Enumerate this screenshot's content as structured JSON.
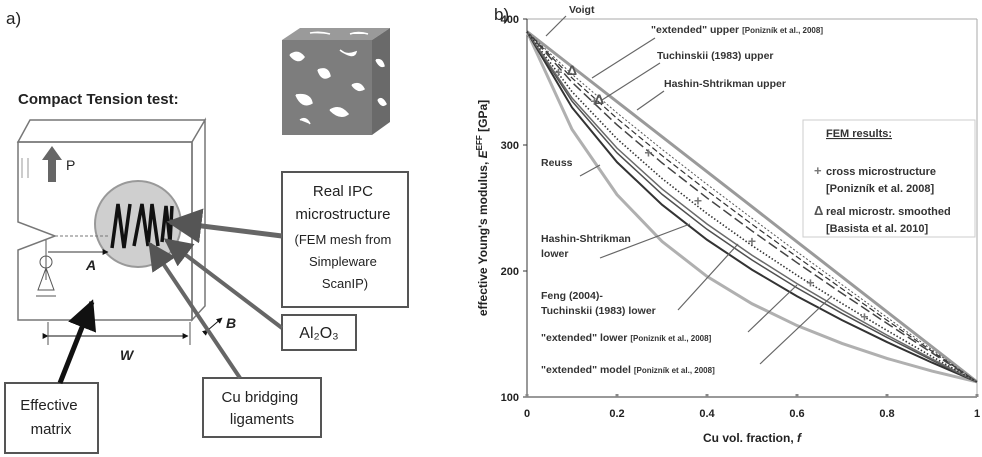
{
  "panel_a": {
    "label": "a)",
    "title": "Compact Tension test:",
    "load": "P",
    "dim_a": "A",
    "dim_b": "B",
    "dim_w": "W",
    "micro_box": [
      "Real IPC",
      "microstructure",
      "(FEM mesh from",
      "Simpleware",
      "ScanIP)"
    ],
    "al2o3": "Al₂O₃",
    "cu_box": [
      "Cu bridging",
      "ligaments"
    ],
    "matrix_box": [
      "Effective",
      "matrix"
    ]
  },
  "chart_data": {
    "type": "line",
    "panel_label": "b)",
    "xlabel": "Cu vol. fraction, ",
    "xlabel_var": "f",
    "ylabel": "effective Young's modulus, ",
    "ylabel_var": "E",
    "ylabel_sup": "EFF",
    "ylabel_unit": " [GPa]",
    "xlim": [
      0,
      1
    ],
    "ylim": [
      100,
      400
    ],
    "xticks": [
      0,
      0.2,
      0.4,
      0.6,
      0.8,
      1
    ],
    "yticks": [
      100,
      200,
      300,
      400
    ],
    "x": [
      0,
      0.1,
      0.2,
      0.3,
      0.4,
      0.5,
      0.6,
      0.7,
      0.8,
      0.9,
      1
    ],
    "series": [
      {
        "label": [
          "Voigt"
        ],
        "color": "#9a9a9a",
        "width": 3,
        "dash": "none",
        "values": [
          390,
          362.2,
          334.4,
          306.6,
          278.8,
          251,
          223.2,
          195.4,
          167.6,
          139.8,
          112
        ]
      },
      {
        "label": [
          "\"extended\" upper "
        ],
        "ref": "[Ponizník et al., 2008]",
        "color": "#555555",
        "width": 1,
        "dash": "2,2",
        "values": [
          390,
          356.2,
          325.5,
          296.6,
          268.8,
          241.8,
          215.2,
          189.1,
          163.2,
          137.5,
          112
        ]
      },
      {
        "label": [
          "Tuchinskii (1983) upper"
        ],
        "color": "#333333",
        "width": 1.2,
        "dash": "6,3",
        "values": [
          390,
          353.2,
          321.1,
          291.6,
          263.8,
          237.1,
          211.2,
          185.9,
          160.9,
          136.3,
          112
        ]
      },
      {
        "label": [
          "Hashin-Shtrikman upper"
        ],
        "color": "#444444",
        "width": 1.5,
        "dash": "10,4",
        "values": [
          390,
          349.8,
          316,
          285.8,
          258,
          231.8,
          206.6,
          182.2,
          158.4,
          135,
          112
        ]
      },
      {
        "label": [
          "Reuss"
        ],
        "color": "#b0b0b0",
        "width": 3,
        "dash": "none",
        "values": [
          390,
          312.4,
          260.6,
          223.5,
          195.7,
          174,
          156.7,
          142.5,
          130.6,
          120.6,
          112
        ]
      },
      {
        "label": [
          "Hashin-Shtrikman",
          "lower"
        ],
        "color": "#333333",
        "width": 2,
        "dash": "none",
        "values": [
          390,
          329.8,
          286.4,
          252.6,
          224.8,
          201,
          180,
          161,
          143.6,
          127.3,
          112
        ]
      },
      {
        "label": [
          "Feng (2004)-",
          "Tuchinskii (1983) lower"
        ],
        "color": "#505050",
        "width": 1.5,
        "dash": "none",
        "values": [
          390,
          334.8,
          293.8,
          260.9,
          233.1,
          208.7,
          186.6,
          166.3,
          147.3,
          129.2,
          112
        ]
      },
      {
        "label": [
          "\"extended\" lower "
        ],
        "ref": "[Ponizník et al., 2008]",
        "color": "#6a6a6a",
        "width": 1.5,
        "dash": "none",
        "values": [
          390,
          337.3,
          297.5,
          265.1,
          237.3,
          212.5,
          190,
          169,
          149.1,
          130.2,
          112
        ]
      },
      {
        "label": [
          "\"extended\" model "
        ],
        "ref": "[Ponizník et al., 2008]",
        "color": "#333333",
        "width": 1.6,
        "dash": "1.5,2",
        "values": [
          390,
          342.3,
          304.9,
          273.4,
          245.6,
          220.2,
          196.6,
          174.2,
          152.8,
          132.1,
          112
        ]
      }
    ],
    "fem_title": "FEM results:",
    "fem": [
      {
        "marker": "+",
        "label": [
          "cross microstructure",
          "[Ponizník et al. 2008]"
        ],
        "color": "#777777",
        "x": [
          0.07,
          0.15,
          0.27,
          0.38,
          0.5,
          0.63,
          0.75
        ],
        "values": [
          358,
          335,
          294,
          256,
          224,
          191,
          164
        ]
      },
      {
        "marker": "Δ",
        "label": [
          "real microstr. smoothed",
          "[Basista et al. 2010]"
        ],
        "color": "#555555",
        "x": [
          0.1,
          0.16
        ],
        "values": [
          359.5,
          336.5
        ]
      }
    ]
  }
}
